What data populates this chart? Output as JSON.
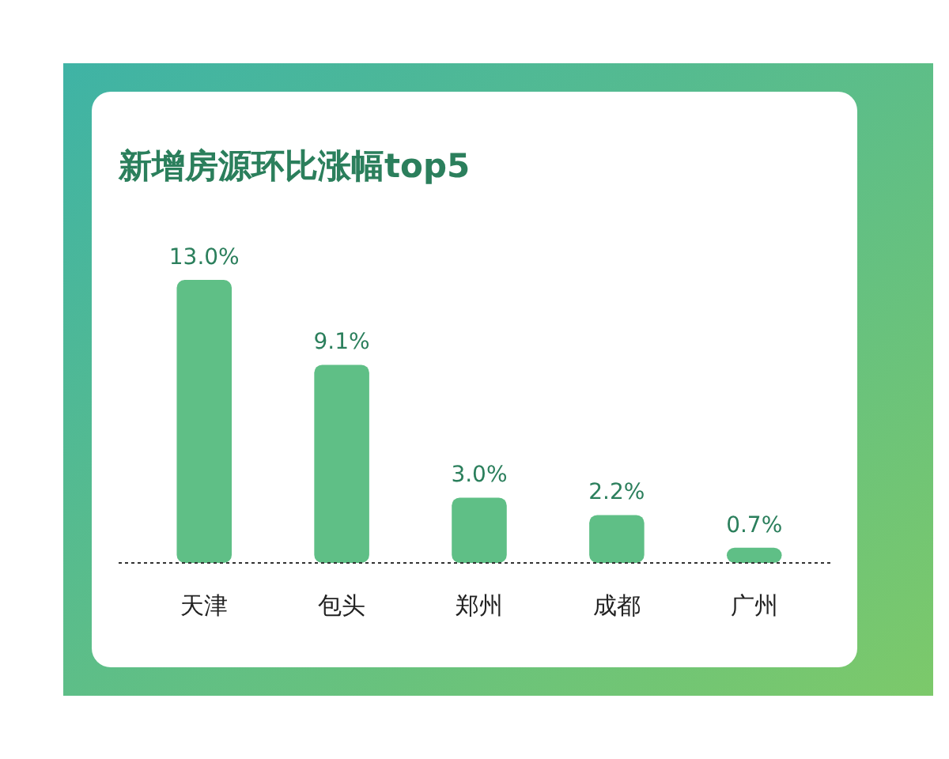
{
  "chart_data": {
    "type": "bar",
    "title": "新增房源环比涨幅top5",
    "categories": [
      "天津",
      "包头",
      "郑州",
      "成都",
      "广州"
    ],
    "values": [
      13.0,
      9.1,
      3.0,
      2.2,
      0.7
    ],
    "value_labels": [
      "13.0%",
      "9.1%",
      "3.0%",
      "2.2%",
      "0.7%"
    ],
    "color": "#5fbf86"
  }
}
